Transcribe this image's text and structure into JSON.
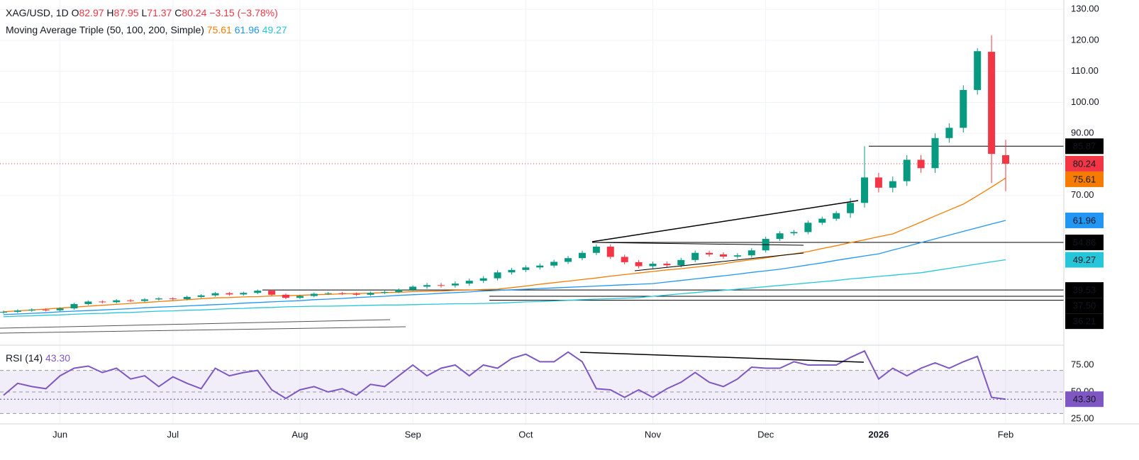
{
  "chart_data": {
    "type": "candlestick",
    "title": "XAG/USD, 1D",
    "header": {
      "fields": [
        {
          "label": "O",
          "path": "open"
        },
        {
          "label": "H",
          "path": "high"
        },
        {
          "label": "L",
          "path": "low"
        },
        {
          "label": "C",
          "path": "close"
        }
      ],
      "change": "−3.15 (−3.78%)"
    },
    "categories": [
      null,
      null,
      null,
      null,
      "Jun",
      null,
      null,
      null,
      null,
      null,
      null,
      null,
      "Jul",
      null,
      null,
      null,
      null,
      null,
      null,
      null,
      null,
      "Aug",
      null,
      null,
      null,
      null,
      null,
      null,
      null,
      "Sep",
      null,
      null,
      null,
      null,
      null,
      null,
      null,
      "Oct",
      null,
      null,
      null,
      null,
      null,
      null,
      null,
      null,
      "Nov",
      null,
      null,
      null,
      null,
      null,
      null,
      null,
      "Dec",
      null,
      null,
      null,
      null,
      null,
      null,
      null,
      "2026",
      null,
      null,
      null,
      null,
      null,
      null,
      null,
      null,
      "Feb"
    ],
    "open": [
      32.3,
      32.5,
      32.9,
      33.2,
      33.0,
      33.6,
      35.0,
      35.8,
      35.6,
      36.2,
      36.0,
      36.5,
      36.8,
      36.6,
      37.3,
      37.8,
      38.5,
      38.1,
      38.6,
      39.3,
      38.0,
      37.0,
      37.6,
      38.3,
      38.5,
      38.3,
      38.0,
      38.6,
      38.9,
      39.6,
      40.6,
      41.1,
      41.0,
      41.6,
      42.5,
      43.3,
      45.2,
      46.0,
      46.8,
      47.4,
      48.6,
      49.8,
      51.5,
      53.5,
      50.2,
      48.5,
      47.2,
      48.0,
      47.5,
      49.2,
      51.5,
      51.0,
      50.3,
      50.7,
      52.3,
      56.0,
      57.8,
      58.2,
      61.2,
      62.5,
      64.3,
      67.6,
      75.8,
      72.5,
      74.6,
      81.5,
      78.8,
      88.5,
      91.8,
      104.0,
      116.3,
      82.97
    ],
    "high": [
      32.9,
      33.3,
      33.6,
      33.6,
      34.0,
      35.4,
      36.2,
      36.2,
      36.6,
      36.6,
      36.9,
      37.2,
      37.2,
      37.7,
      38.2,
      38.9,
      38.9,
      39.0,
      39.7,
      39.7,
      38.4,
      38.0,
      38.7,
      38.9,
      38.9,
      38.7,
      39.0,
      39.3,
      40.0,
      41.0,
      41.8,
      41.8,
      42.3,
      43.2,
      44.0,
      45.9,
      46.7,
      47.5,
      48.1,
      49.3,
      50.5,
      52.2,
      54.2,
      54.2,
      50.9,
      49.2,
      48.7,
      48.7,
      49.9,
      52.2,
      52.2,
      51.7,
      51.4,
      53.0,
      56.7,
      58.5,
      58.9,
      61.9,
      63.2,
      65.0,
      69.1,
      85.87,
      77.3,
      76.1,
      83.0,
      83.0,
      90.0,
      93.3,
      105.5,
      117.5,
      121.6,
      87.95
    ],
    "low": [
      31.9,
      32.1,
      32.5,
      32.6,
      32.6,
      33.2,
      34.6,
      35.2,
      35.2,
      35.6,
      35.6,
      36.1,
      36.2,
      36.2,
      36.9,
      37.4,
      37.7,
      37.7,
      38.2,
      37.6,
      36.6,
      36.6,
      37.2,
      37.9,
      37.9,
      37.6,
      37.6,
      38.2,
      38.5,
      39.2,
      39.9,
      40.3,
      40.3,
      40.9,
      41.8,
      42.6,
      44.5,
      45.3,
      46.1,
      46.7,
      47.9,
      49.1,
      50.8,
      49.5,
      47.8,
      46.5,
      46.5,
      46.8,
      46.8,
      48.5,
      50.3,
      49.6,
      49.6,
      50.0,
      51.6,
      55.3,
      57.1,
      57.5,
      60.5,
      61.8,
      62.8,
      66.1,
      71.0,
      71.0,
      73.1,
      77.3,
      77.3,
      87.0,
      90.3,
      102.5,
      74.0,
      71.37
    ],
    "close": [
      32.5,
      32.9,
      33.2,
      33.0,
      33.6,
      35.0,
      35.8,
      35.6,
      36.2,
      36.0,
      36.5,
      36.8,
      36.6,
      37.3,
      37.8,
      38.5,
      38.1,
      38.6,
      39.3,
      38.0,
      37.0,
      37.6,
      38.3,
      38.5,
      38.3,
      38.0,
      38.6,
      38.9,
      39.6,
      40.6,
      41.1,
      41.0,
      41.6,
      42.5,
      43.3,
      45.2,
      46.0,
      46.8,
      47.4,
      48.6,
      49.8,
      51.5,
      53.5,
      50.2,
      48.5,
      47.2,
      48.0,
      47.5,
      49.2,
      51.5,
      51.0,
      50.3,
      50.7,
      52.3,
      56.0,
      57.8,
      58.2,
      61.2,
      62.5,
      64.3,
      67.6,
      75.8,
      72.5,
      74.6,
      81.5,
      78.8,
      88.5,
      91.8,
      104.0,
      116.5,
      83.39,
      80.24
    ],
    "up_color": "#089981",
    "down_color": "#f23645",
    "moving_average": {
      "name": "Moving Average Triple (50, 100, 200, Simple)",
      "lines": [
        {
          "color": "#f57c00",
          "values": [
            32.5,
            32.8,
            33.1,
            33.4,
            33.7,
            34.0,
            34.3,
            34.6,
            34.9,
            35.2,
            35.5,
            35.8,
            36.1,
            36.4,
            36.7,
            37.0,
            37.1,
            37.3,
            37.4,
            37.6,
            37.7,
            37.8,
            38.0,
            38.1,
            38.3,
            38.4,
            38.5,
            38.7,
            38.8,
            39.0,
            39.1,
            39.2,
            39.4,
            39.5,
            39.7,
            39.8,
            40.3,
            40.8,
            41.4,
            41.9,
            42.4,
            42.9,
            43.4,
            44.0,
            44.5,
            45.0,
            45.5,
            46.0,
            46.4,
            46.9,
            47.4,
            48.0,
            48.7,
            49.3,
            49.9,
            50.6,
            51.2,
            51.9,
            52.9,
            53.8,
            54.8,
            55.7,
            56.7,
            57.6,
            59.5,
            61.4,
            63.4,
            65.3,
            67.2,
            69.9,
            72.7,
            75.61
          ]
        },
        {
          "color": "#2196f3",
          "values": [
            31.6,
            31.8,
            32.0,
            32.2,
            32.5,
            32.7,
            32.9,
            33.1,
            33.3,
            33.5,
            33.8,
            34.0,
            34.2,
            34.4,
            34.6,
            34.8,
            35.0,
            35.3,
            35.5,
            35.7,
            35.9,
            36.1,
            36.4,
            36.6,
            36.8,
            37.1,
            37.3,
            37.5,
            37.8,
            38.0,
            38.2,
            38.5,
            38.7,
            38.9,
            39.2,
            39.4,
            39.6,
            39.8,
            40.0,
            40.2,
            40.4,
            40.6,
            40.8,
            41.0,
            41.2,
            41.4,
            41.6,
            42.1,
            42.6,
            43.1,
            43.6,
            44.1,
            44.6,
            45.2,
            45.7,
            46.2,
            46.9,
            47.6,
            48.3,
            49.1,
            49.8,
            50.5,
            51.2,
            52.4,
            53.6,
            54.8,
            56.0,
            57.2,
            58.4,
            59.6,
            60.8,
            61.96
          ]
        },
        {
          "color": "#26c6da",
          "values": [
            30.9,
            31.1,
            31.2,
            31.4,
            31.5,
            31.7,
            31.9,
            32.0,
            32.2,
            32.3,
            32.5,
            32.7,
            32.8,
            33.0,
            33.1,
            33.3,
            33.5,
            33.6,
            33.8,
            33.9,
            34.1,
            34.2,
            34.3,
            34.3,
            34.4,
            34.5,
            34.6,
            34.7,
            34.7,
            34.8,
            34.9,
            35.0,
            35.1,
            35.1,
            35.2,
            35.3,
            35.5,
            35.7,
            35.8,
            36.0,
            36.2,
            36.4,
            36.6,
            36.7,
            36.9,
            37.1,
            37.5,
            37.9,
            38.3,
            38.7,
            39.1,
            39.4,
            39.8,
            40.2,
            40.6,
            41.0,
            41.4,
            41.8,
            42.2,
            42.6,
            43.1,
            43.5,
            43.9,
            44.3,
            44.7,
            45.1,
            45.8,
            46.5,
            47.2,
            47.9,
            48.6,
            49.27
          ]
        }
      ]
    },
    "ylim": [
      22.2,
      133.0
    ],
    "yticks": [
      {
        "value": 130,
        "label": "130.00"
      },
      {
        "value": 120,
        "label": "120.00"
      },
      {
        "value": 110,
        "label": "110.00"
      },
      {
        "value": 100,
        "label": "100.00"
      },
      {
        "value": 90,
        "label": "90.00"
      },
      {
        "value": 70,
        "label": "70.00"
      }
    ],
    "grid": true,
    "levels": [
      {
        "value": 85.87,
        "color": "#000000"
      },
      {
        "value": 54.86,
        "color": "#000000"
      },
      {
        "value": 39.53,
        "color": "#000000"
      },
      {
        "value": 37.5,
        "label": "37.50",
        "color": "#000000"
      },
      {
        "value": 36.21,
        "color": "#000000"
      }
    ],
    "rsi": {
      "name": "RSI (14)",
      "color": "#7e57c2",
      "values": [
        47,
        58,
        55,
        53,
        65,
        72,
        74,
        68,
        72,
        62,
        65,
        55,
        64,
        58,
        53,
        72,
        65,
        68,
        70,
        52,
        44,
        52,
        55,
        50,
        53,
        47,
        57,
        55,
        65,
        75,
        65,
        72,
        75,
        65,
        75,
        72,
        81,
        85,
        78,
        78,
        87,
        78,
        53,
        52,
        45,
        52,
        45,
        53,
        59,
        68,
        59,
        55,
        62,
        73,
        72,
        72,
        78,
        75,
        75,
        75,
        82,
        88,
        62,
        72,
        65,
        72,
        77,
        72,
        78,
        83,
        45,
        43.3
      ],
      "last": {
        "value": 43.3,
        "label": "43.30"
      },
      "ylim": [
        22.4,
        91.4
      ],
      "yticks": [
        {
          "value": 75,
          "label": "75.00"
        },
        {
          "value": 50,
          "label": "50.00"
        },
        {
          "value": 25,
          "label": "25.00"
        }
      ],
      "band": [
        30,
        70
      ]
    }
  }
}
